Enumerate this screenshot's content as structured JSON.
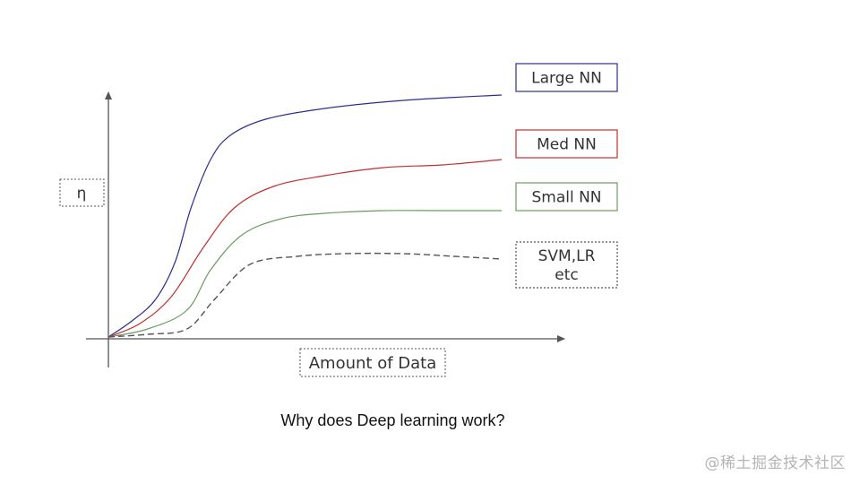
{
  "chart_data": {
    "type": "line",
    "title": "",
    "xlabel": "Amount of Data",
    "ylabel": "η",
    "xlim": [
      0,
      100
    ],
    "ylim": [
      0,
      100
    ],
    "grid": false,
    "legend": "right",
    "series": [
      {
        "name": "Large NN",
        "color": "#2b2f8a",
        "style": "solid",
        "points": [
          [
            0,
            0
          ],
          [
            6,
            6
          ],
          [
            12,
            14
          ],
          [
            17,
            28
          ],
          [
            21,
            48
          ],
          [
            26,
            66
          ],
          [
            31,
            75
          ],
          [
            40,
            81
          ],
          [
            55,
            85
          ],
          [
            75,
            88
          ],
          [
            100,
            90
          ]
        ]
      },
      {
        "name": "Med NN",
        "color": "#c0302e",
        "style": "solid",
        "points": [
          [
            0,
            0
          ],
          [
            8,
            5
          ],
          [
            16,
            15
          ],
          [
            24,
            33
          ],
          [
            32,
            48
          ],
          [
            42,
            56
          ],
          [
            55,
            60
          ],
          [
            70,
            63
          ],
          [
            85,
            64
          ],
          [
            100,
            66
          ]
        ]
      },
      {
        "name": "Small NN",
        "color": "#6d9a63",
        "style": "solid",
        "points": [
          [
            0,
            0
          ],
          [
            10,
            3
          ],
          [
            20,
            10
          ],
          [
            26,
            25
          ],
          [
            34,
            38
          ],
          [
            44,
            44
          ],
          [
            55,
            46
          ],
          [
            70,
            47
          ],
          [
            85,
            47
          ],
          [
            100,
            47
          ]
        ]
      },
      {
        "name": "SVM,LR\netc",
        "color": "#555555",
        "style": "dashed",
        "points": [
          [
            0,
            0
          ],
          [
            10,
            1
          ],
          [
            20,
            3
          ],
          [
            27,
            14
          ],
          [
            36,
            27
          ],
          [
            48,
            30
          ],
          [
            60,
            31
          ],
          [
            75,
            31
          ],
          [
            88,
            30
          ],
          [
            100,
            29
          ]
        ]
      }
    ]
  },
  "caption": "Why does Deep learning work?",
  "watermark": "@稀土掘金技术社区"
}
